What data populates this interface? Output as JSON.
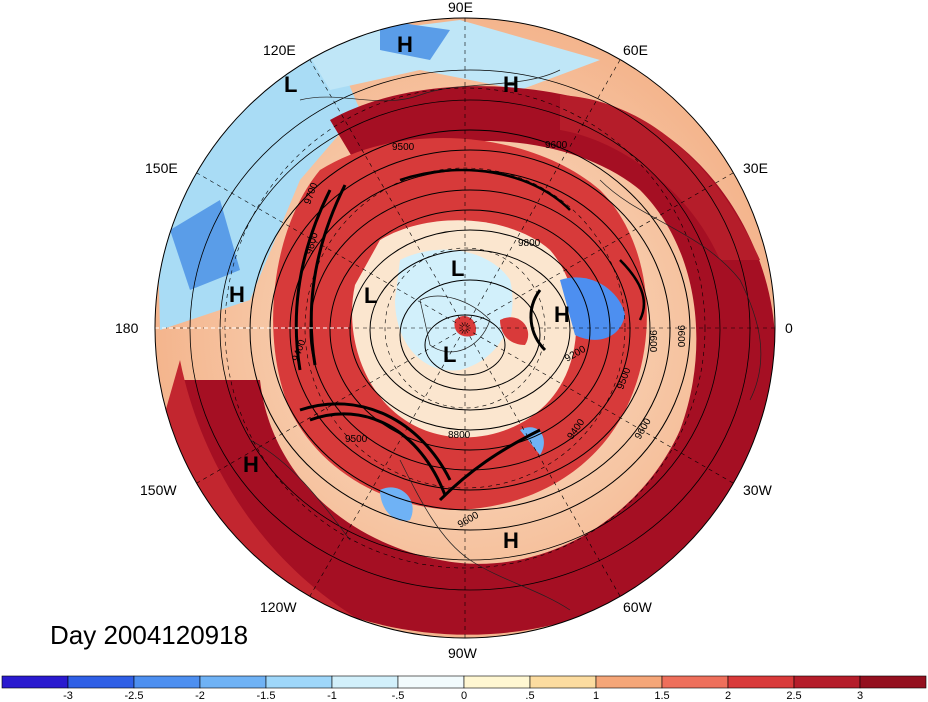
{
  "date_label": "Day 2004120918",
  "longitude_labels": [
    "90E",
    "60E",
    "30E",
    "0",
    "30W",
    "60W",
    "90W",
    "120W",
    "150W",
    "180",
    "150E",
    "120E"
  ],
  "pressure_systems": [
    "H",
    "H",
    "L",
    "H",
    "L",
    "L",
    "H",
    "L",
    "H",
    "H"
  ],
  "contour_labels": [
    "9500",
    "9600",
    "9700",
    "9600",
    "9800",
    "9600",
    "9200",
    "9400",
    "9600",
    "9500",
    "9400",
    "9600",
    "8800",
    "9500",
    "9600"
  ],
  "colorbar": {
    "ticks": [
      "-3",
      "-2.5",
      "-2",
      "-1.5",
      "-1",
      "-.5",
      "0",
      ".5",
      "1",
      "1.5",
      "2",
      "2.5",
      "3"
    ],
    "colors": [
      "#2a1acf",
      "#2f5fe6",
      "#4d8ff0",
      "#6fb2f5",
      "#9fd7fa",
      "#d2f0fb",
      "#f2fbfd",
      "#fff7d2",
      "#fcdca0",
      "#f5a678",
      "#ee6f5b",
      "#d93a3a",
      "#b51d2a",
      "#94101f"
    ]
  },
  "colors": {
    "deep_red": "#a50f23",
    "red": "#d73a3a",
    "light_red": "#f08a6b",
    "pale": "#fbe6cf",
    "light_blue": "#bfe6f7",
    "blue": "#5a9de8"
  }
}
